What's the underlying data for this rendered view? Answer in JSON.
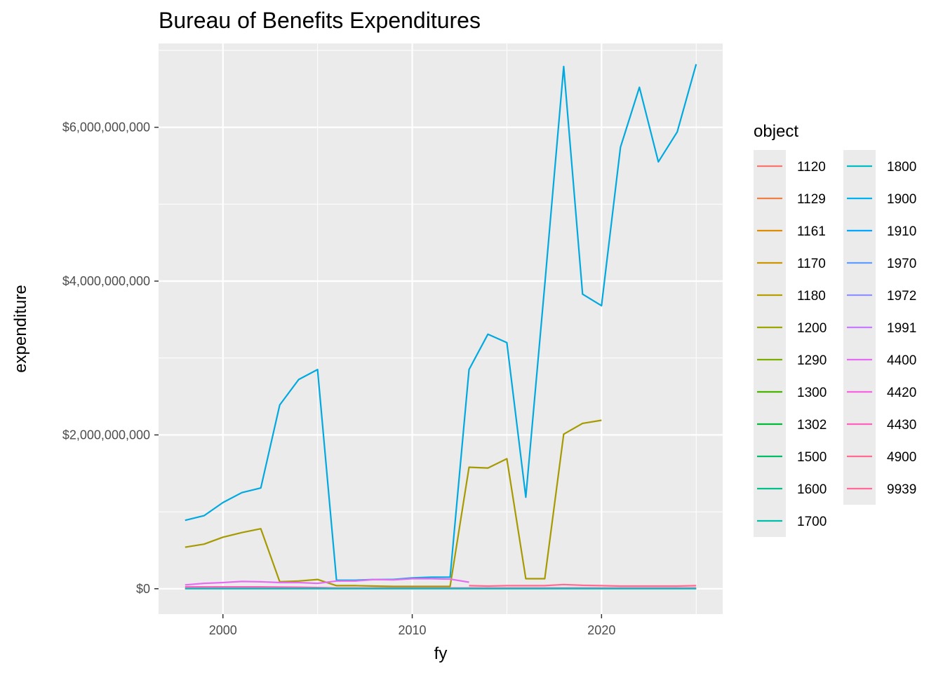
{
  "chart_data": {
    "type": "line",
    "title": "Bureau of Benefits Expenditures",
    "xlabel": "fy",
    "ylabel": "expenditure",
    "xlim": [
      1996.6,
      2026.4
    ],
    "ylim": [
      -330000000,
      7090000000
    ],
    "x_ticks": [
      2000,
      2010,
      2020
    ],
    "x_tick_labels": [
      "2000",
      "2010",
      "2020"
    ],
    "y_ticks": [
      0,
      2000000000,
      4000000000,
      6000000000
    ],
    "y_tick_labels": [
      "$0",
      "$2,000,000,000",
      "$4,000,000,000",
      "$6,000,000,000"
    ],
    "grid": true,
    "legend": {
      "title": "object",
      "position": "right",
      "entries": [
        {
          "label": "1120",
          "color": "#F8766D"
        },
        {
          "label": "1129",
          "color": "#EE8044"
        },
        {
          "label": "1161",
          "color": "#DE8C00"
        },
        {
          "label": "1170",
          "color": "#CD9600"
        },
        {
          "label": "1180",
          "color": "#B79F00"
        },
        {
          "label": "1200",
          "color": "#9DA700"
        },
        {
          "label": "1290",
          "color": "#7CAE00"
        },
        {
          "label": "1300",
          "color": "#49B500"
        },
        {
          "label": "1302",
          "color": "#00BA38"
        },
        {
          "label": "1500",
          "color": "#00BE67"
        },
        {
          "label": "1600",
          "color": "#00C08B"
        },
        {
          "label": "1700",
          "color": "#00BFAA"
        },
        {
          "label": "1800",
          "color": "#00BFC4"
        },
        {
          "label": "1900",
          "color": "#00B4EF"
        },
        {
          "label": "1910",
          "color": "#00A9FF"
        },
        {
          "label": "1970",
          "color": "#619CFF"
        },
        {
          "label": "1972",
          "color": "#8F91FF"
        },
        {
          "label": "1991",
          "color": "#C77CFF"
        },
        {
          "label": "4400",
          "color": "#E76BF3"
        },
        {
          "label": "4420",
          "color": "#F763E0"
        },
        {
          "label": "4430",
          "color": "#FF62BC"
        },
        {
          "label": "4900",
          "color": "#FF6C91"
        },
        {
          "label": "9939",
          "color": "#FF6A98"
        }
      ]
    },
    "series": [
      {
        "name": "1900",
        "color": "#00A9E0",
        "x": [
          1998,
          1999,
          2000,
          2001,
          2002,
          2003,
          2004,
          2005,
          2006,
          2007,
          2008,
          2009,
          2010,
          2011,
          2012,
          2013,
          2014,
          2015,
          2016,
          2017,
          2018,
          2019,
          2020,
          2021,
          2022,
          2023,
          2024,
          2025
        ],
        "values": [
          890000000,
          950000000,
          1120000000,
          1250000000,
          1310000000,
          2390000000,
          2720000000,
          2850000000,
          110000000,
          110000000,
          120000000,
          120000000,
          140000000,
          150000000,
          150000000,
          2850000000,
          3310000000,
          3200000000,
          1190000000,
          3950000000,
          6790000000,
          3830000000,
          3680000000,
          5740000000,
          6520000000,
          5550000000,
          5940000000,
          6820000000
        ]
      },
      {
        "name": "1180",
        "color": "#A69A00",
        "x": [
          1998,
          1999,
          2000,
          2001,
          2002,
          2003,
          2004,
          2005,
          2006,
          2007,
          2008,
          2009,
          2010,
          2011,
          2012,
          2013,
          2014,
          2015,
          2016,
          2017,
          2018,
          2019,
          2020
        ],
        "values": [
          540000000,
          580000000,
          670000000,
          730000000,
          780000000,
          90000000,
          100000000,
          120000000,
          40000000,
          40000000,
          35000000,
          30000000,
          30000000,
          30000000,
          30000000,
          1580000000,
          1570000000,
          1690000000,
          130000000,
          130000000,
          2010000000,
          2150000000,
          2190000000
        ]
      },
      {
        "name": "4400",
        "color": "#E76BF3",
        "x": [
          1998,
          1999,
          2000,
          2001,
          2002,
          2003,
          2004,
          2005,
          2006,
          2007,
          2008,
          2009,
          2010,
          2011,
          2012,
          2013
        ],
        "values": [
          50000000,
          70000000,
          80000000,
          95000000,
          90000000,
          80000000,
          80000000,
          70000000,
          100000000,
          100000000,
          120000000,
          115000000,
          130000000,
          130000000,
          125000000,
          85000000
        ]
      },
      {
        "name": "4900",
        "color": "#FF6C91",
        "x": [
          2013,
          2014,
          2015,
          2016,
          2017,
          2018,
          2019,
          2020,
          2021,
          2022,
          2023,
          2024,
          2025
        ],
        "values": [
          40000000,
          35000000,
          40000000,
          40000000,
          40000000,
          55000000,
          45000000,
          40000000,
          35000000,
          35000000,
          35000000,
          35000000,
          40000000
        ]
      },
      {
        "name": "4430",
        "color": "#FF62BC",
        "x": [
          1998,
          2000,
          2002,
          2004,
          2006,
          2008,
          2010,
          2012,
          2014,
          2016,
          2018,
          2020,
          2022,
          2025
        ],
        "values": [
          25000000,
          25000000,
          25000000,
          20000000,
          10000000,
          10000000,
          10000000,
          10000000,
          10000000,
          10000000,
          10000000,
          10000000,
          10000000,
          10000000
        ]
      },
      {
        "name": "9939",
        "color": "#FF6A98",
        "x": [
          1998,
          2005,
          2010,
          2015,
          2020,
          2025
        ],
        "values": [
          5000000,
          5000000,
          5000000,
          5000000,
          5000000,
          5000000
        ]
      },
      {
        "name": "1120",
        "color": "#F8766D",
        "x": [
          1998,
          2005,
          2010,
          2015,
          2020,
          2025
        ],
        "values": [
          3000000,
          3000000,
          3000000,
          3000000,
          3000000,
          3000000
        ]
      },
      {
        "name": "1800",
        "color": "#00BFC4",
        "x": [
          1998,
          2005,
          2010,
          2015,
          2020,
          2025
        ],
        "values": [
          2000000,
          2000000,
          2000000,
          2000000,
          2000000,
          2000000
        ]
      }
    ]
  }
}
